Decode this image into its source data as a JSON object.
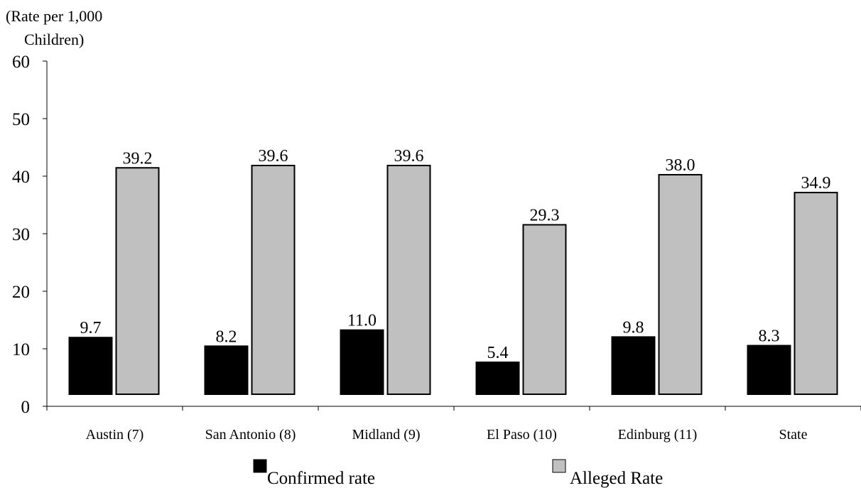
{
  "chart_data": {
    "type": "bar",
    "title": "",
    "unit_label_line1": "(Rate per 1,000",
    "unit_label_line2": "Children)",
    "xlabel": "",
    "categories": [
      "Austin (7)",
      "San Antonio (8)",
      "Midland (9)",
      "El Paso (10)",
      "Edinburg (11)",
      "State"
    ],
    "series": [
      {
        "name": "Confirmed rate",
        "values": [
          9.7,
          8.2,
          11.0,
          5.4,
          9.8,
          8.3
        ],
        "labels": [
          "9.7",
          "8.2",
          "11.0",
          "5.4",
          "9.8",
          "8.3"
        ],
        "color": "#000000"
      },
      {
        "name": "Alleged Rate",
        "values": [
          39.2,
          39.6,
          39.6,
          29.3,
          38.0,
          34.9
        ],
        "labels": [
          "39.2",
          "39.6",
          "39.6",
          "29.3",
          "38.0",
          "34.9"
        ],
        "color": "#c0c0c0"
      }
    ],
    "ylim": [
      0,
      60
    ],
    "yticks": [
      "0",
      "10",
      "20",
      "30",
      "40",
      "50",
      "60"
    ],
    "grid": false,
    "legend_position": "bottom"
  }
}
